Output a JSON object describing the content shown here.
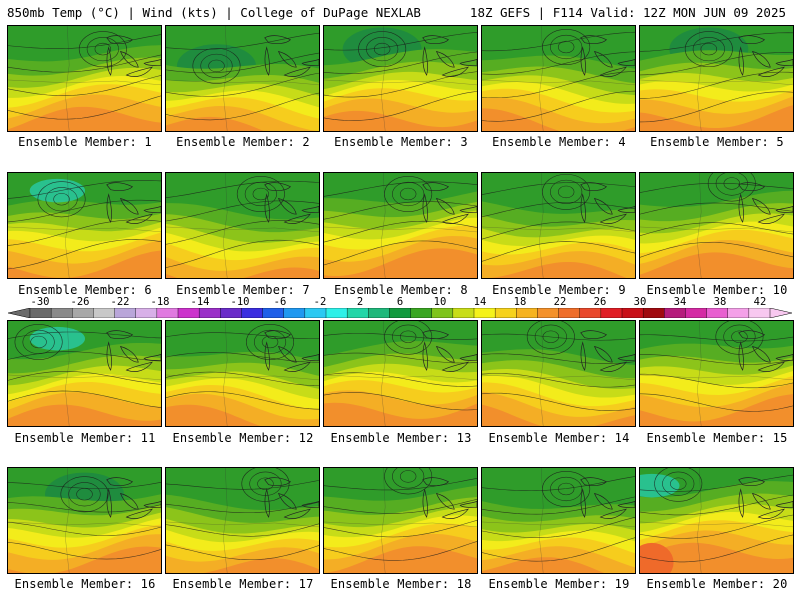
{
  "header": {
    "left": "850mb Temp (°C) | Wind (kts) | College of DuPage NEXLAB",
    "right": "18Z GEFS | F114 Valid: 12Z MON JUN 09 2025"
  },
  "colorbar": {
    "labels": [
      "-30",
      "-26",
      "-22",
      "-18",
      "-14",
      "-10",
      "-6",
      "-2",
      "2",
      "6",
      "10",
      "14",
      "18",
      "22",
      "26",
      "30",
      "34",
      "38",
      "42"
    ],
    "colors": [
      "#6b6b6b",
      "#8a8a8a",
      "#a8a8a8",
      "#c8c8c8",
      "#b9a6d9",
      "#d8b0e8",
      "#e07ae0",
      "#cc33cc",
      "#9b30c8",
      "#6a2cc9",
      "#3b2ee0",
      "#1f5fe8",
      "#1f98f0",
      "#2cc9f2",
      "#2ef0e8",
      "#22d6a8",
      "#1fb87b",
      "#129a3e",
      "#3aa622",
      "#7fc41c",
      "#c8dd18",
      "#f5f21a",
      "#f6d21c",
      "#f6b31f",
      "#f4912a",
      "#ef6e2a",
      "#e9482c",
      "#e01e25",
      "#c81019",
      "#a00a10",
      "#b51c7c",
      "#d42aa4",
      "#e85fd0",
      "#f4a0e8",
      "#f8c8f0"
    ]
  },
  "panels": [
    {
      "label": "Ensemble Member: 1",
      "warm": 0.45,
      "cool": 0.55,
      "low": [
        0.62,
        0.22
      ]
    },
    {
      "label": "Ensemble Member: 2",
      "warm": 0.35,
      "cool": 0.75,
      "low": [
        0.33,
        0.38
      ]
    },
    {
      "label": "Ensemble Member: 3",
      "warm": 0.4,
      "cool": 0.7,
      "low": [
        0.38,
        0.22
      ]
    },
    {
      "label": "Ensemble Member: 4",
      "warm": 0.55,
      "cool": 0.4,
      "low": [
        0.55,
        0.2
      ]
    },
    {
      "label": "Ensemble Member: 5",
      "warm": 0.45,
      "cool": 0.65,
      "low": [
        0.45,
        0.22
      ]
    },
    {
      "label": "Ensemble Member: 6",
      "warm": 0.4,
      "cool": 0.6,
      "low": [
        0.35,
        0.25
      ]
    },
    {
      "label": "Ensemble Member: 7",
      "warm": 0.4,
      "cool": 0.55,
      "low": [
        0.62,
        0.2
      ]
    },
    {
      "label": "Ensemble Member: 8",
      "warm": 0.55,
      "cool": 0.45,
      "low": [
        0.55,
        0.2
      ]
    },
    {
      "label": "Ensemble Member: 9",
      "warm": 0.5,
      "cool": 0.55,
      "low": [
        0.55,
        0.18
      ]
    },
    {
      "label": "Ensemble Member: 10",
      "warm": 0.5,
      "cool": 0.55,
      "low": [
        0.6,
        0.1
      ]
    },
    {
      "label": "Ensemble Member: 11",
      "warm": 0.4,
      "cool": 0.55,
      "low": [
        0.2,
        0.2
      ]
    },
    {
      "label": "Ensemble Member: 12",
      "warm": 0.55,
      "cool": 0.55,
      "low": [
        0.68,
        0.2
      ]
    },
    {
      "label": "Ensemble Member: 13",
      "warm": 0.55,
      "cool": 0.5,
      "low": [
        0.55,
        0.15
      ]
    },
    {
      "label": "Ensemble Member: 14",
      "warm": 0.55,
      "cool": 0.45,
      "low": [
        0.45,
        0.15
      ]
    },
    {
      "label": "Ensemble Member: 15",
      "warm": 0.55,
      "cool": 0.45,
      "low": [
        0.65,
        0.15
      ]
    },
    {
      "label": "Ensemble Member: 16",
      "warm": 0.4,
      "cool": 0.65,
      "low": [
        0.5,
        0.25
      ]
    },
    {
      "label": "Ensemble Member: 17",
      "warm": 0.5,
      "cool": 0.45,
      "low": [
        0.65,
        0.15
      ]
    },
    {
      "label": "Ensemble Member: 18",
      "warm": 0.5,
      "cool": 0.6,
      "low": [
        0.55,
        0.08
      ]
    },
    {
      "label": "Ensemble Member: 19",
      "warm": 0.45,
      "cool": 0.55,
      "low": [
        0.55,
        0.2
      ]
    },
    {
      "label": "Ensemble Member: 20",
      "warm": 0.7,
      "cool": 0.45,
      "low": [
        0.25,
        0.15
      ]
    }
  ]
}
